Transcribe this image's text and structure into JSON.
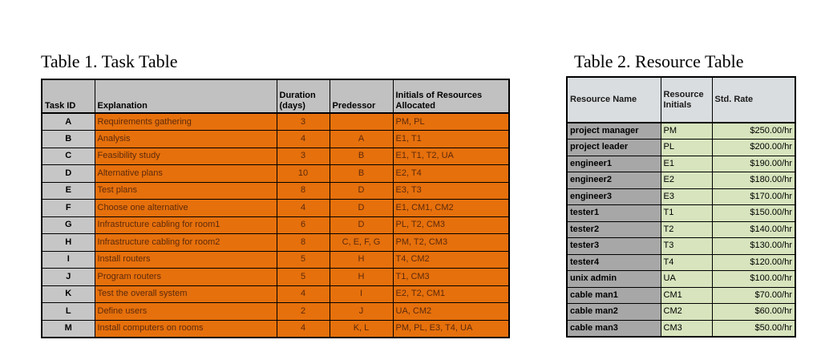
{
  "theme": {
    "page_bg": "#FFFFFF",
    "title_color": "#000000",
    "border": "#000000",
    "t1_header_bg": "#C1C1C1",
    "t1_id_bg": "#C6C6C6",
    "t1_row_bg": "#E6700C",
    "t1_row_text": "#5E2A0B",
    "t2_header_bg": "#DADDDF",
    "t2_name_bg": "#A7A7A7",
    "t2_cell_bg": "#D7E4BD"
  },
  "table1": {
    "title": "Table 1. Task Table",
    "columns": [
      "Task ID",
      "Explanation",
      "Duration (days)",
      "Predessor",
      "Initials of Resources Allocated"
    ],
    "rows": [
      {
        "id": "A",
        "explanation": "Requirements gathering",
        "duration": "3",
        "predessor": "",
        "resources": "PM, PL"
      },
      {
        "id": "B",
        "explanation": "Analysis",
        "duration": "4",
        "predessor": "A",
        "resources": "E1, T1"
      },
      {
        "id": "C",
        "explanation": "Feasibility study",
        "duration": "3",
        "predessor": "B",
        "resources": "E1, T1, T2, UA"
      },
      {
        "id": "D",
        "explanation": "Alternative plans",
        "duration": "10",
        "predessor": "B",
        "resources": "E2, T4"
      },
      {
        "id": "E",
        "explanation": "Test plans",
        "duration": "8",
        "predessor": "D",
        "resources": "E3, T3"
      },
      {
        "id": "F",
        "explanation": "Choose one alternative",
        "duration": "4",
        "predessor": "D",
        "resources": "E1, CM1, CM2"
      },
      {
        "id": "G",
        "explanation": "Infrastructure cabling for room1",
        "duration": "6",
        "predessor": "D",
        "resources": "PL, T2, CM3"
      },
      {
        "id": "H",
        "explanation": "Infrastructure cabling for room2",
        "duration": "8",
        "predessor": "C, E, F, G",
        "resources": "PM, T2, CM3"
      },
      {
        "id": "I",
        "explanation": "Install routers",
        "duration": "5",
        "predessor": "H",
        "resources": "T4, CM2"
      },
      {
        "id": "J",
        "explanation": "Program routers",
        "duration": "5",
        "predessor": "H",
        "resources": "T1, CM3"
      },
      {
        "id": "K",
        "explanation": "Test the overall system",
        "duration": "4",
        "predessor": "I",
        "resources": "E2, T2, CM1"
      },
      {
        "id": "L",
        "explanation": "Define users",
        "duration": "2",
        "predessor": "J",
        "resources": "UA, CM2"
      },
      {
        "id": "M",
        "explanation": "Install computers on rooms",
        "duration": "4",
        "predessor": "K, L",
        "resources": "PM, PL, E3, T4, UA"
      }
    ]
  },
  "table2": {
    "title": "Table 2. Resource Table",
    "columns": [
      "Resource Name",
      "Resource Initials",
      "Std. Rate"
    ],
    "rows": [
      {
        "name": "project manager",
        "initials": "PM",
        "rate": "$250.00/hr"
      },
      {
        "name": "project leader",
        "initials": "PL",
        "rate": "$200.00/hr"
      },
      {
        "name": "engineer1",
        "initials": "E1",
        "rate": "$190.00/hr"
      },
      {
        "name": "engineer2",
        "initials": "E2",
        "rate": "$180.00/hr"
      },
      {
        "name": "engineer3",
        "initials": "E3",
        "rate": "$170.00/hr"
      },
      {
        "name": "tester1",
        "initials": "T1",
        "rate": "$150.00/hr"
      },
      {
        "name": "tester2",
        "initials": "T2",
        "rate": "$140.00/hr"
      },
      {
        "name": "tester3",
        "initials": "T3",
        "rate": "$130.00/hr"
      },
      {
        "name": "tester4",
        "initials": "T4",
        "rate": "$120.00/hr"
      },
      {
        "name": "unix admin",
        "initials": "UA",
        "rate": "$100.00/hr"
      },
      {
        "name": "cable man1",
        "initials": "CM1",
        "rate": "$70.00/hr"
      },
      {
        "name": "cable man2",
        "initials": "CM2",
        "rate": "$60.00/hr"
      },
      {
        "name": "cable man3",
        "initials": "CM3",
        "rate": "$50.00/hr"
      }
    ]
  }
}
